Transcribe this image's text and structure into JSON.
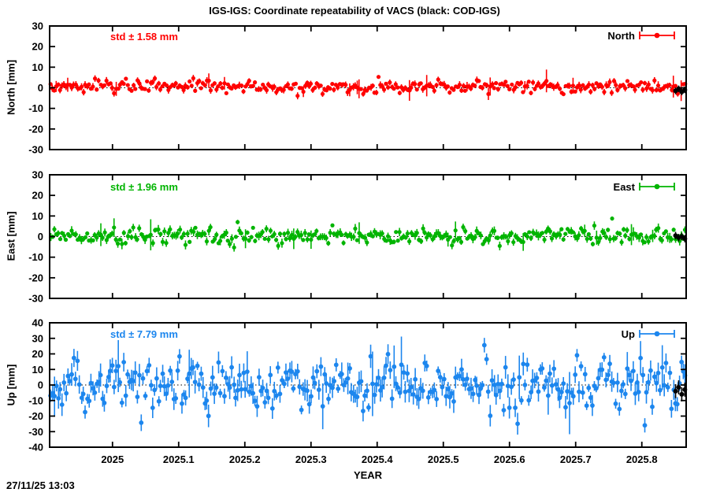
{
  "page": {
    "title": "IGS-IGS: Coordinate repeatability of VACS (black: COD-IGS)",
    "timestamp": "27/11/25 13:03",
    "xlabel": "YEAR"
  },
  "chart_data": {
    "type": "scatter",
    "title": "IGS-IGS: Coordinate repeatability of VACS (black: COD-IGS)",
    "xlabel": "YEAR",
    "grid": false,
    "legend_position": "top-right-inside",
    "x_range": [
      2024.905,
      2025.867
    ],
    "x_ticks": [
      "2025",
      "2025.1",
      "2025.2",
      "2025.3",
      "2025.4",
      "2025.5",
      "2025.6",
      "2025.7",
      "2025.8"
    ],
    "x_tick_values": [
      2025,
      2025.1,
      2025.2,
      2025.3,
      2025.4,
      2025.5,
      2025.6,
      2025.7,
      2025.8
    ],
    "n_points": 330,
    "point_style": "filled-circle-with-vertical-error-bar",
    "panels": [
      {
        "id": "north",
        "name": "North",
        "ylabel": "North [mm]",
        "legend": "North",
        "std_label": "std ± 1.58 mm",
        "std_mm": 1.58,
        "mean_mm": 0.4,
        "err_mm": 1.2,
        "ylim": [
          -30,
          30
        ],
        "yticks": [
          "30",
          "20",
          "10",
          "0",
          "-10",
          "-20",
          "-30"
        ],
        "ytick_values": [
          30,
          20,
          10,
          0,
          -10,
          -20,
          -30
        ],
        "clip": [
          -9,
          8
        ],
        "color": "#ff0000",
        "seed": 7101
      },
      {
        "id": "east",
        "name": "East",
        "ylabel": "East [mm]",
        "legend": "East",
        "std_label": "std ± 1.96 mm",
        "std_mm": 1.96,
        "mean_mm": 0.3,
        "err_mm": 1.5,
        "ylim": [
          -30,
          30
        ],
        "yticks": [
          "30",
          "20",
          "10",
          "0",
          "-10",
          "-20",
          "-30"
        ],
        "ytick_values": [
          30,
          20,
          10,
          0,
          -10,
          -20,
          -30
        ],
        "clip": [
          -10,
          9
        ],
        "color": "#00b400",
        "seed": 7202
      },
      {
        "id": "up",
        "name": "Up",
        "ylabel": "Up [mm]",
        "legend": "Up",
        "std_label": "std ± 7.79 mm",
        "std_mm": 7.79,
        "mean_mm": 0.5,
        "err_mm": 5.0,
        "ylim": [
          -40,
          40
        ],
        "yticks": [
          "40",
          "30",
          "20",
          "10",
          "0",
          "-10",
          "-20",
          "-30",
          "-40"
        ],
        "ytick_values": [
          40,
          30,
          20,
          10,
          0,
          -10,
          -20,
          -30,
          -40
        ],
        "clip": [
          -27,
          32
        ],
        "color": "#1c86ee",
        "seed": 7303,
        "zero_line_dotted": true
      }
    ],
    "cod_series": {
      "legend_note": "black: COD-IGS",
      "color": "#000000",
      "x_range": [
        2025.851,
        2025.865
      ],
      "values": {
        "North": [
          -1.5,
          -0.5,
          -2.0,
          -1.0
        ],
        "East": [
          0.5,
          -0.5,
          0.0,
          -1.0
        ],
        "Up": [
          -4.0,
          -1.5,
          -6.0,
          -3.0
        ]
      },
      "err_mm": {
        "North": 1.6,
        "East": 1.8,
        "Up": 4.5
      }
    }
  }
}
